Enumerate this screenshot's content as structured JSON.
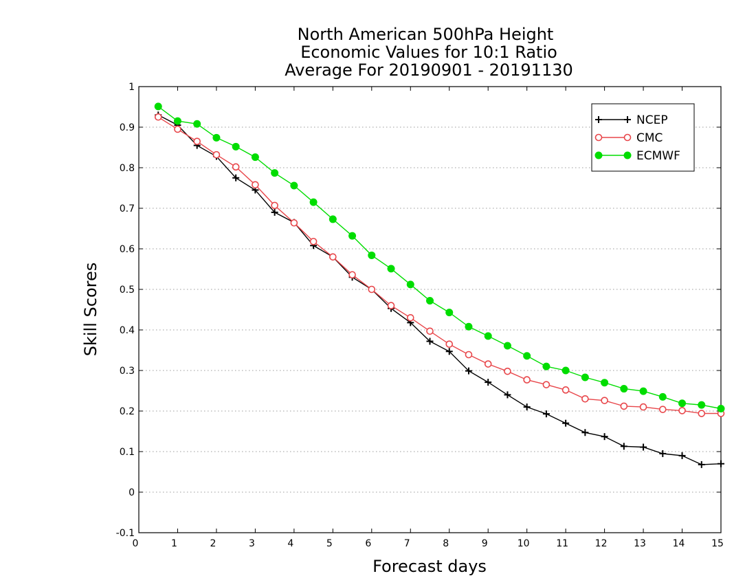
{
  "chart_data": {
    "type": "line",
    "title": [
      "North American 500hPa Height",
      "Economic Values for 10:1 Ratio",
      "Average For 20190901 - 20191130"
    ],
    "xlabel": "Forecast days",
    "ylabel": "Skill Scores",
    "xlim": [
      0,
      15
    ],
    "ylim": [
      -0.1,
      1
    ],
    "x_ticks": [
      "0",
      "1",
      "2",
      "3",
      "4",
      "5",
      "6",
      "7",
      "8",
      "9",
      "10",
      "11",
      "12",
      "13",
      "14",
      "15"
    ],
    "y_ticks": [
      "-0.1",
      "0",
      "0.1",
      "0.2",
      "0.3",
      "0.4",
      "0.5",
      "0.6",
      "0.7",
      "0.8",
      "0.9",
      "1"
    ],
    "grid": "horizontal dotted",
    "legend_position": "top-right",
    "x": [
      0.5,
      1,
      1.5,
      2,
      2.5,
      3,
      3.5,
      4,
      4.5,
      5,
      5.5,
      6,
      6.5,
      7,
      7.5,
      8,
      8.5,
      9,
      9.5,
      10,
      10.5,
      11,
      11.5,
      12,
      12.5,
      13,
      13.5,
      14,
      14.5,
      15
    ],
    "series": [
      {
        "name": "NCEP",
        "color": "#000000",
        "marker": "plus",
        "values": [
          0.93,
          0.905,
          0.855,
          0.828,
          0.775,
          0.745,
          0.69,
          0.665,
          0.608,
          0.58,
          0.53,
          0.5,
          0.453,
          0.418,
          0.372,
          0.347,
          0.299,
          0.271,
          0.24,
          0.21,
          0.193,
          0.17,
          0.147,
          0.137,
          0.113,
          0.111,
          0.095,
          0.09,
          0.068,
          0.07
        ]
      },
      {
        "name": "CMC",
        "color": "#e8464a",
        "marker": "open-circle",
        "values": [
          0.925,
          0.895,
          0.865,
          0.832,
          0.802,
          0.758,
          0.707,
          0.664,
          0.618,
          0.58,
          0.536,
          0.5,
          0.46,
          0.43,
          0.397,
          0.365,
          0.339,
          0.316,
          0.298,
          0.277,
          0.265,
          0.252,
          0.23,
          0.226,
          0.212,
          0.21,
          0.204,
          0.201,
          0.194,
          0.194
        ]
      },
      {
        "name": "ECMWF",
        "color": "#00dd00",
        "marker": "filled-circle",
        "values": [
          0.951,
          0.915,
          0.908,
          0.874,
          0.852,
          0.826,
          0.787,
          0.756,
          0.715,
          0.673,
          0.632,
          0.584,
          0.551,
          0.512,
          0.472,
          0.443,
          0.408,
          0.385,
          0.361,
          0.336,
          0.31,
          0.3,
          0.283,
          0.27,
          0.255,
          0.249,
          0.235,
          0.219,
          0.215,
          0.206
        ]
      }
    ]
  }
}
